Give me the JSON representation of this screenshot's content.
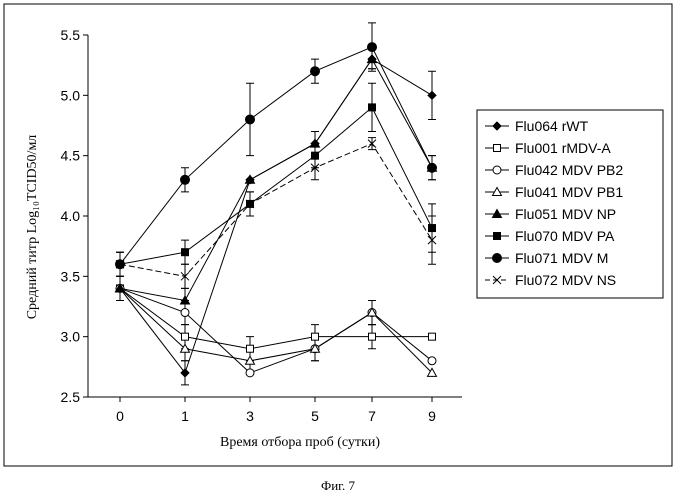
{
  "chart_data": {
    "type": "line",
    "xlabel": "Время отбора проб (сутки)",
    "ylabel": "Средний титр Log₁₀TCID50/мл",
    "caption": "Фиг. 7",
    "x": [
      0,
      1,
      3,
      5,
      7,
      9
    ],
    "x_ticks": [
      "0",
      "1",
      "3",
      "5",
      "7",
      "9"
    ],
    "ylim": [
      2.5,
      5.5
    ],
    "y_ticks": [
      "2.5",
      "3.0",
      "3.5",
      "4.0",
      "4.5",
      "5.0",
      "5.5"
    ],
    "grid": false,
    "legend_position": "right",
    "series": [
      {
        "name": "Flu064 rWT",
        "marker": "diamond-filled",
        "dash": "solid",
        "values": [
          3.4,
          2.7,
          4.3,
          4.6,
          5.3,
          5.0
        ],
        "errors": [
          0.1,
          0.1,
          0,
          0.1,
          0.08,
          0.2
        ]
      },
      {
        "name": "Flu001 rMDV-A",
        "marker": "square-open",
        "dash": "solid",
        "values": [
          3.4,
          3.0,
          2.9,
          3.0,
          3.0,
          3.0
        ],
        "errors": [
          0.1,
          0.1,
          0.1,
          0.1,
          0.1,
          0
        ]
      },
      {
        "name": "Flu042  MDV PB2",
        "marker": "circle-open",
        "dash": "solid",
        "values": [
          3.4,
          3.2,
          2.7,
          2.9,
          3.2,
          2.8
        ],
        "errors": [
          0.1,
          0.1,
          0,
          0.1,
          0.1,
          0
        ]
      },
      {
        "name": "Flu041  MDV PB1",
        "marker": "triangle-open",
        "dash": "solid",
        "values": [
          3.4,
          2.9,
          2.8,
          2.9,
          3.2,
          2.7
        ],
        "errors": [
          0.1,
          0.1,
          0.1,
          0.1,
          0.1,
          0
        ]
      },
      {
        "name": "Flu051  MDV NP",
        "marker": "triangle-filled",
        "dash": "solid",
        "values": [
          3.4,
          3.3,
          4.3,
          4.6,
          5.3,
          4.4
        ],
        "errors": [
          0.1,
          0.1,
          0,
          0.1,
          0.08,
          0.1
        ]
      },
      {
        "name": "Flu070  MDV PA",
        "marker": "square-filled",
        "dash": "solid",
        "values": [
          3.6,
          3.7,
          4.1,
          4.5,
          4.9,
          3.9
        ],
        "errors": [
          0.1,
          0.1,
          0.1,
          0.1,
          0.2,
          0.2
        ]
      },
      {
        "name": "Flu071  MDV M",
        "marker": "circle-filled",
        "dash": "solid",
        "values": [
          3.6,
          4.3,
          4.8,
          5.2,
          5.4,
          4.4
        ],
        "errors": [
          0.1,
          0.1,
          0.3,
          0.1,
          0.2,
          0.1
        ]
      },
      {
        "name": "Flu072  MDV NS",
        "marker": "x",
        "dash": "dashed",
        "values": [
          3.6,
          3.5,
          4.1,
          4.4,
          4.6,
          3.8
        ],
        "errors": [
          0.1,
          0.1,
          0.1,
          0.1,
          0.05,
          0.2
        ]
      }
    ]
  }
}
